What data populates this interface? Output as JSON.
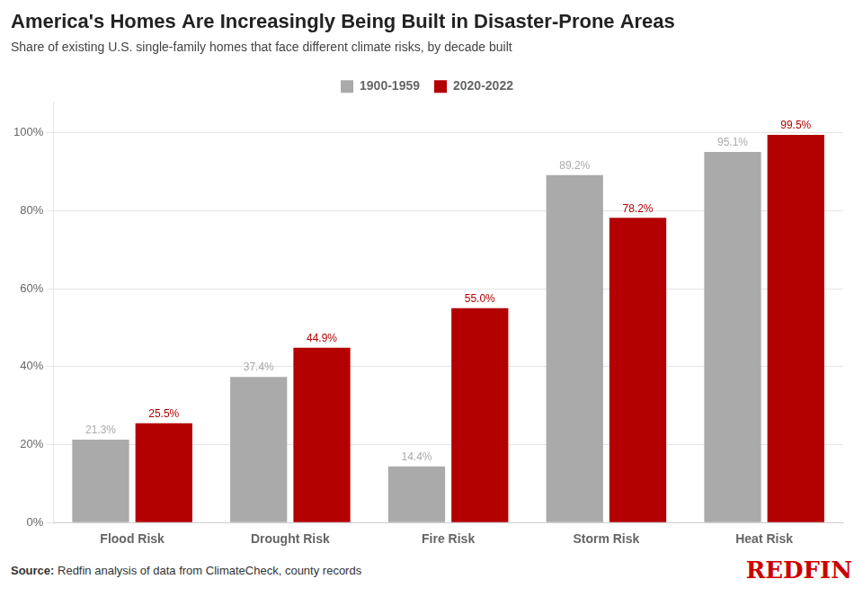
{
  "chart_data": {
    "type": "bar",
    "title": "America's Homes Are Increasingly Being Built in Disaster-Prone Areas",
    "subtitle": "Share of existing U.S. single-family homes that face different climate risks, by decade built",
    "categories": [
      "Flood Risk",
      "Drought Risk",
      "Fire Risk",
      "Storm Risk",
      "Heat Risk"
    ],
    "series": [
      {
        "name": "1900-1959",
        "color": "#aaaaaa",
        "values": [
          21.3,
          37.4,
          14.4,
          89.2,
          95.1
        ],
        "value_labels": [
          "21.3%",
          "37.4%",
          "14.4%",
          "89.2%",
          "95.1%"
        ]
      },
      {
        "name": "2020-2022",
        "color": "#b30000",
        "values": [
          25.5,
          44.9,
          55.0,
          78.2,
          99.5
        ],
        "value_labels": [
          "25.5%",
          "44.9%",
          "55.0%",
          "78.2%",
          "99.5%"
        ]
      }
    ],
    "ylim": [
      0,
      108
    ],
    "yticks": [
      {
        "value": 0,
        "label": "0%"
      },
      {
        "value": 20,
        "label": "20%"
      },
      {
        "value": 40,
        "label": "40%"
      },
      {
        "value": 60,
        "label": "60%"
      },
      {
        "value": 80,
        "label": "80%"
      },
      {
        "value": 100,
        "label": "100%"
      }
    ],
    "grid": true,
    "legend": "top",
    "data_labels": true,
    "source": "Source: Redfin analysis of data from ClimateCheck, county records",
    "annotations": [
      {
        "text": "REDFIN",
        "color": "#cc0000"
      }
    ]
  }
}
